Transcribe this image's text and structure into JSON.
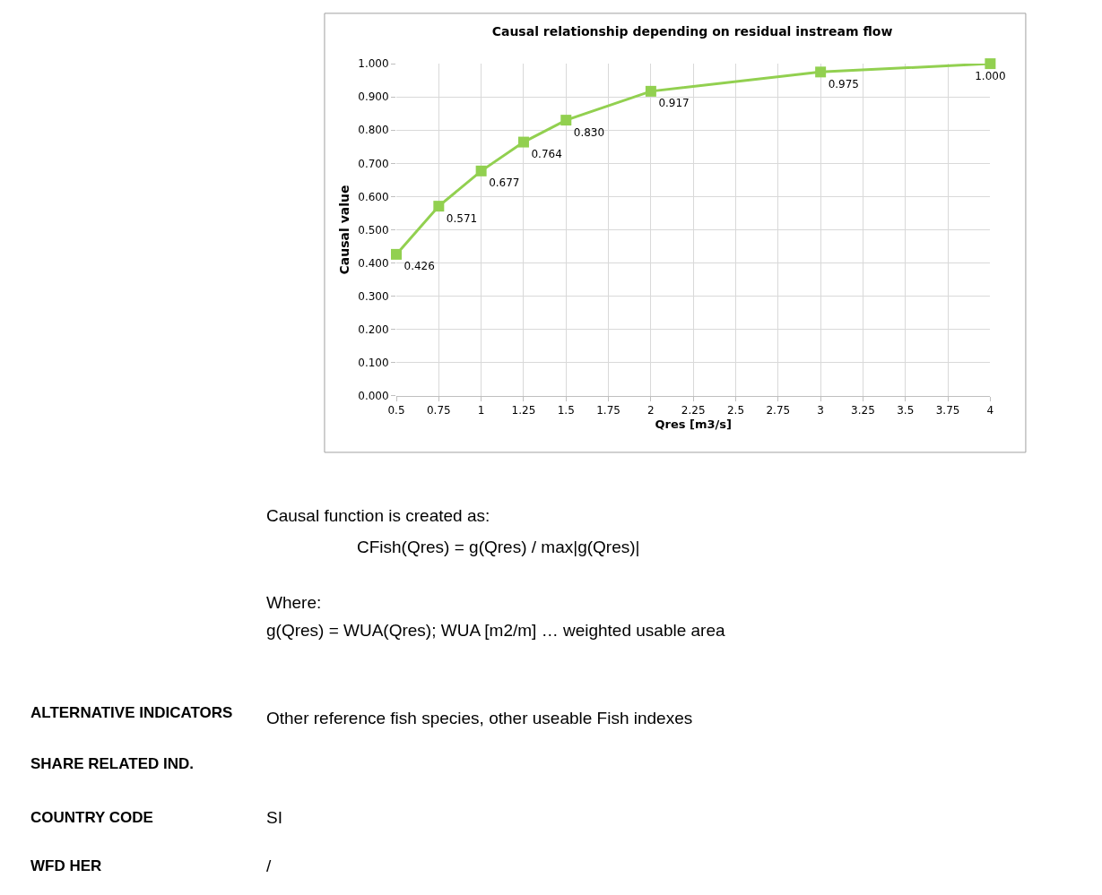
{
  "chart_data": {
    "type": "line",
    "title": "Causal relationship depending on residual instream flow",
    "xlabel": "Qres [m3/s]",
    "ylabel": "Causal value",
    "x": [
      0.5,
      0.75,
      1,
      1.25,
      1.5,
      2,
      3,
      4
    ],
    "series": [
      {
        "color": "#92d050",
        "values": [
          0.426,
          0.571,
          0.677,
          0.764,
          0.83,
          0.917,
          0.975,
          1.0
        ]
      }
    ],
    "xlim": [
      0.5,
      4
    ],
    "xticks": [
      0.5,
      0.75,
      1,
      1.25,
      1.5,
      1.75,
      2,
      2.25,
      2.5,
      2.75,
      3,
      3.25,
      3.5,
      3.75,
      4
    ],
    "ylim": [
      0,
      1
    ],
    "yticks": [
      {
        "value": 0,
        "label": "0.000"
      },
      {
        "value": 0.1,
        "label": "0.100"
      },
      {
        "value": 0.2,
        "label": "0.200"
      },
      {
        "value": 0.3,
        "label": "0.300"
      },
      {
        "value": 0.4,
        "label": "0.400"
      },
      {
        "value": 0.5,
        "label": "0.500"
      },
      {
        "value": 0.6,
        "label": "0.600"
      },
      {
        "value": 0.7,
        "label": "0.700"
      },
      {
        "value": 0.8,
        "label": "0.800"
      },
      {
        "value": 0.9,
        "label": "0.900"
      },
      {
        "value": 1,
        "label": "1.000"
      }
    ],
    "value_labels": [
      "0.426",
      "0.571",
      "0.677",
      "0.764",
      "0.830",
      "0.917",
      "0.975",
      "1.000"
    ],
    "grid": true,
    "marker": "square",
    "line_style": "solid",
    "annotations": [
      "Causal function is created as:",
      "CFish(Qres) = g(Qres) / max|g(Qres)|",
      "Where:",
      "g(Qres) = WUA(Qres); WUA [m2/m] … weighted usable area",
      "ALTERNATIVE INDICATORS",
      "Other reference fish species, other useable Fish indexes",
      "SHARE RELATED IND.",
      "COUNTRY CODE",
      "SI",
      "WFD HER",
      "/"
    ]
  }
}
